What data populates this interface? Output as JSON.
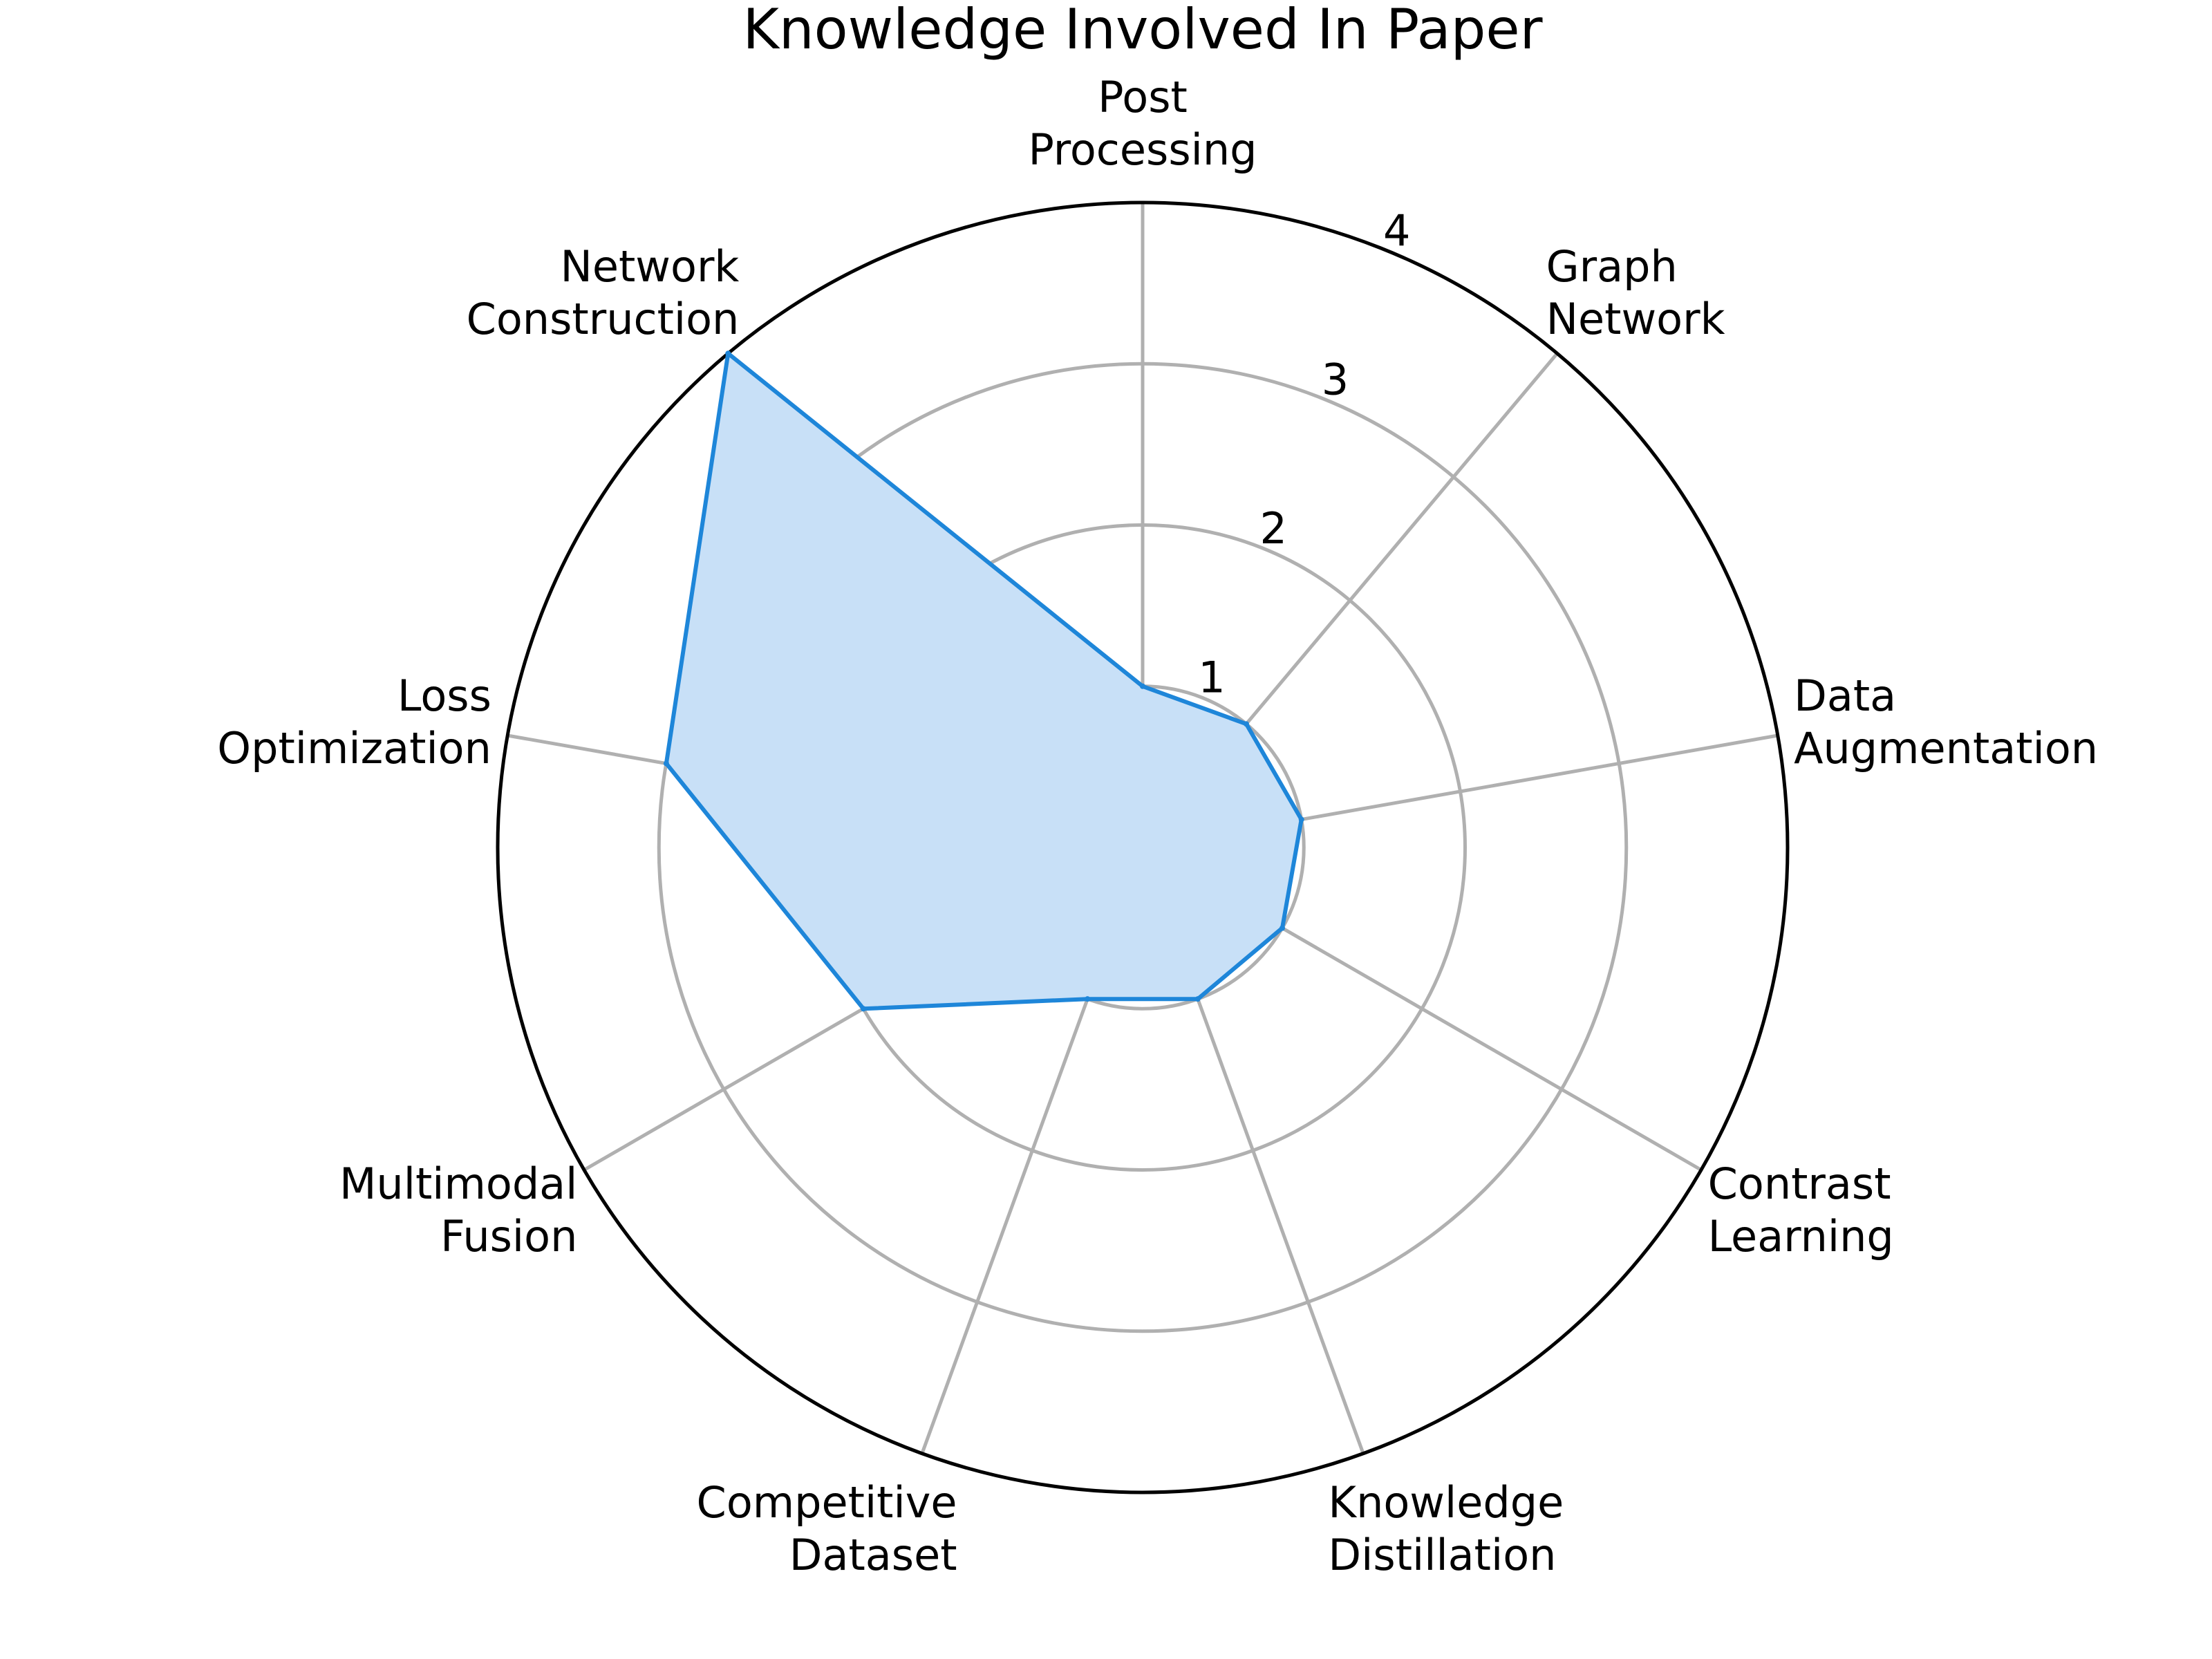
{
  "chart_data": {
    "type": "radar",
    "title": "Knowledge Involved In Paper",
    "categories": [
      "Post\nProcessing",
      "Graph\nNetwork",
      "Data\nAugmentation",
      "Contrast\nLearning",
      "Knowledge\nDistillation",
      "Competitive\nDataset",
      "Multimodal\nFusion",
      "Loss\nOptimization",
      "Network\nConstruction"
    ],
    "series": [
      {
        "values": [
          1,
          1,
          1,
          1,
          1,
          1,
          2,
          3,
          4
        ]
      }
    ],
    "rlim": [
      0,
      4
    ],
    "rticks": [
      "1",
      "2",
      "3",
      "4"
    ],
    "grid": true,
    "colors": {
      "line": "#1e86d9",
      "fill": "#c8e0f7",
      "grid": "#b0b0b0",
      "frame": "#000000"
    }
  }
}
